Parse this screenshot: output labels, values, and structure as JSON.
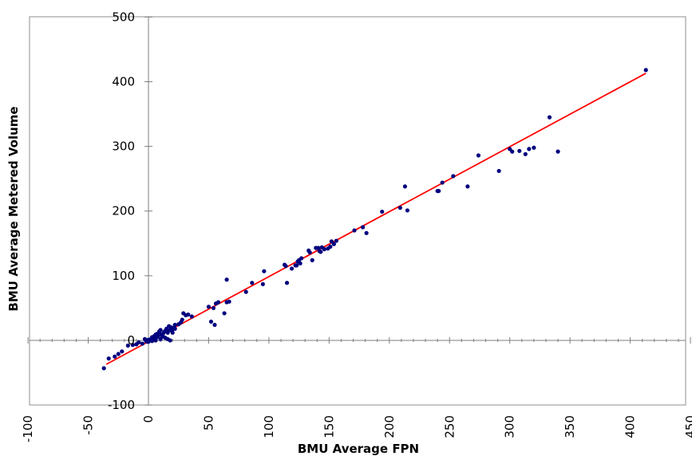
{
  "chart_data": {
    "type": "scatter",
    "title": "",
    "xlabel": "BMU Average FPN",
    "ylabel": "BMU Average Metered Volume",
    "xlim": [
      -100,
      450
    ],
    "ylim": [
      -100,
      500
    ],
    "x_ticks": [
      "-100",
      "-50",
      "0",
      "50",
      "100",
      "150",
      "200",
      "250",
      "300",
      "350",
      "400",
      "450"
    ],
    "y_ticks": [
      "-100",
      "0",
      "100",
      "200",
      "300",
      "400",
      "500"
    ],
    "grid": false,
    "legend": "none",
    "colors": {
      "points": "#00007f",
      "trendline": "#ff0000",
      "axes": "#7f7f7f",
      "plot_border": "#8f8f8f"
    },
    "trendline": {
      "x": [
        -35,
        413
      ],
      "y": [
        -37,
        413
      ]
    },
    "points": [
      [
        413,
        418
      ],
      [
        333,
        345
      ],
      [
        340,
        292
      ],
      [
        320,
        298
      ],
      [
        316,
        296
      ],
      [
        313,
        288
      ],
      [
        308,
        293
      ],
      [
        302,
        292
      ],
      [
        300,
        296
      ],
      [
        291,
        262
      ],
      [
        274,
        286
      ],
      [
        265,
        238
      ],
      [
        253,
        254
      ],
      [
        244,
        244
      ],
      [
        241,
        231
      ],
      [
        240,
        231
      ],
      [
        215,
        201
      ],
      [
        213,
        238
      ],
      [
        209,
        205
      ],
      [
        194,
        199
      ],
      [
        181,
        166
      ],
      [
        178,
        175
      ],
      [
        171,
        170
      ],
      [
        156,
        154
      ],
      [
        154,
        149
      ],
      [
        152,
        153
      ],
      [
        151,
        145
      ],
      [
        149,
        142
      ],
      [
        146,
        141
      ],
      [
        144,
        144
      ],
      [
        143,
        137
      ],
      [
        142,
        138
      ],
      [
        141,
        143
      ],
      [
        139,
        143
      ],
      [
        136,
        124
      ],
      [
        134,
        136
      ],
      [
        133,
        139
      ],
      [
        127,
        127
      ],
      [
        126,
        119
      ],
      [
        125,
        124
      ],
      [
        124,
        122
      ],
      [
        123,
        116
      ],
      [
        122,
        116
      ],
      [
        119,
        111
      ],
      [
        114,
        115
      ],
      [
        113,
        117
      ],
      [
        115,
        89
      ],
      [
        96,
        107
      ],
      [
        95,
        87
      ],
      [
        86,
        89
      ],
      [
        81,
        75
      ],
      [
        67,
        60
      ],
      [
        65,
        94
      ],
      [
        65,
        59
      ],
      [
        63,
        42
      ],
      [
        58,
        59
      ],
      [
        56,
        57
      ],
      [
        54,
        50
      ],
      [
        55,
        24
      ],
      [
        52,
        29
      ],
      [
        50,
        52
      ],
      [
        36,
        37
      ],
      [
        33,
        40
      ],
      [
        31,
        39
      ],
      [
        29,
        42
      ],
      [
        28,
        32
      ],
      [
        27,
        28
      ],
      [
        25,
        25
      ],
      [
        22,
        24
      ],
      [
        21,
        19
      ],
      [
        20,
        17
      ],
      [
        19,
        20
      ],
      [
        18,
        16
      ],
      [
        17,
        22
      ],
      [
        16,
        12
      ],
      [
        15,
        18
      ],
      [
        14,
        15
      ],
      [
        13,
        13
      ],
      [
        12,
        10
      ],
      [
        11,
        8
      ],
      [
        10,
        16
      ],
      [
        9,
        12
      ],
      [
        8,
        7
      ],
      [
        7,
        5
      ],
      [
        6,
        9
      ],
      [
        5,
        4
      ],
      [
        4,
        3
      ],
      [
        3,
        5
      ],
      [
        2,
        2
      ],
      [
        1,
        0
      ],
      [
        0,
        -2
      ],
      [
        0,
        1
      ],
      [
        -1,
        -2
      ],
      [
        -2,
        -1
      ],
      [
        -3,
        2
      ],
      [
        5,
        7
      ],
      [
        7,
        10
      ],
      [
        9,
        14
      ],
      [
        10,
        2
      ],
      [
        12,
        6
      ],
      [
        14,
        4
      ],
      [
        16,
        2
      ],
      [
        18,
        0
      ],
      [
        20,
        12
      ],
      [
        22,
        18
      ],
      [
        6,
        0
      ],
      [
        3,
        -1
      ],
      [
        -5,
        -5
      ],
      [
        -8,
        -3
      ],
      [
        -10,
        -6
      ],
      [
        -13,
        -7
      ],
      [
        -17,
        -8
      ],
      [
        -22,
        -17
      ],
      [
        -25,
        -21
      ],
      [
        -28,
        -25
      ],
      [
        -33,
        -28
      ],
      [
        -37,
        -43
      ]
    ]
  }
}
